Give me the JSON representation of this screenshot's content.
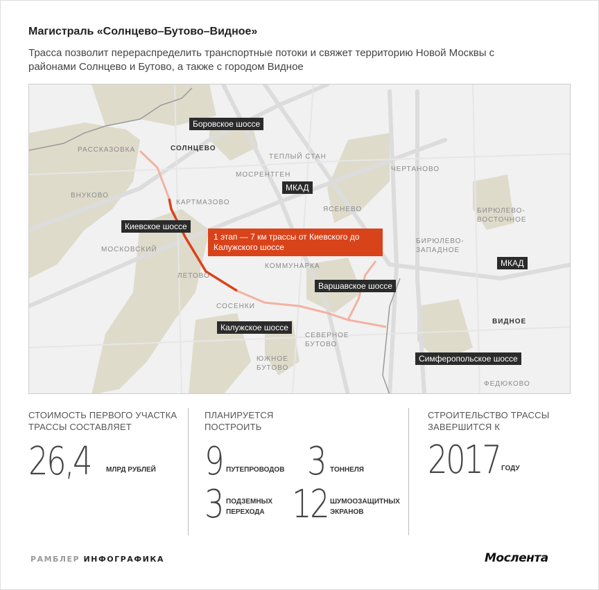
{
  "header": {
    "title": "Магистраль «Солнцево–Бутово–Видное»",
    "subtitle": "Трасса позволит перераспределить транспортные потоки и свяжет территорию Новой Москвы с районами Солнцево и Бутово, а также с городом Видное"
  },
  "map": {
    "colors": {
      "background": "#f1f1f1",
      "forest": "#dedbcb",
      "road": "#dcdcdc",
      "route_stage1": "#d9431a",
      "route_planned": "#f2b2a0",
      "label_bg": "#2b2b2b"
    },
    "places": [
      "РАССКАЗОВКА",
      "СОЛНЦЕВО",
      "ТЕПЛЫЙ СТАН",
      "МОСРЕНТГЕН",
      "ЧЕРТАНОВО",
      "ВНУКОВО",
      "КАРТМАЗОВО",
      "ЯСЕНЕВО",
      "БИРЮЛЕВО-ВОСТОЧНОЕ",
      "БИРЮЛЕВО-ЗАПАДНОЕ",
      "МОСКОВСКИЙ",
      "КОММУНАРКА",
      "ЛЕТОВО",
      "СОСЕНКИ",
      "ВИДНОЕ",
      "СЕВЕРНОЕ БУТОВО",
      "ЮЖНОЕ БУТОВО",
      "ФЕДЮКОВО"
    ],
    "roads": [
      "Боровское шоссе",
      "МКАД",
      "Киевское шоссе",
      "Варшавское шоссе",
      "МКАД",
      "Калужское шоссе",
      "Симферопольское шоссе"
    ],
    "callout": "1 этап — 7 км трассы от Киевского до Калужского шоссе"
  },
  "stats": {
    "cost": {
      "heading": "Стоимость первого участка трассы составляет",
      "value": "26,4",
      "unit": "млрд рублей"
    },
    "planned": {
      "heading": "Планируется построить",
      "items": [
        {
          "value": "9",
          "unit": "путепроводов"
        },
        {
          "value": "3",
          "unit": "тоннеля"
        },
        {
          "value": "3",
          "unit": "подземных перехода"
        },
        {
          "value": "12",
          "unit": "шумоозащитных экранов"
        }
      ]
    },
    "completion": {
      "heading": "Строительство трассы завершится к",
      "value": "2017",
      "unit": "году"
    }
  },
  "footer": {
    "brand_light": "РАМБЛЕР",
    "brand_bold": "ИНФОГРАФИКА",
    "logo": "Мослента"
  }
}
